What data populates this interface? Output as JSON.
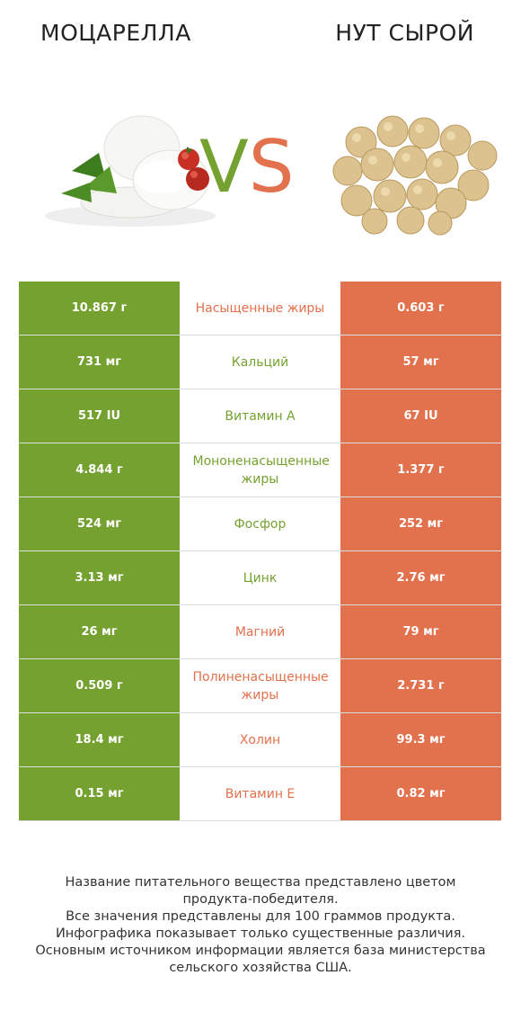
{
  "header": {
    "left_title": "МОЦАРЕЛЛА",
    "vs_v": "V",
    "vs_s": "S",
    "right_title": "НУТ СЫРОЙ"
  },
  "colors": {
    "left": "#74a12f",
    "right": "#e2714d"
  },
  "icons": {
    "left_image": "mozzarella-image",
    "right_image": "chickpeas-image"
  },
  "chart_data": {
    "type": "table",
    "columns": [
      "МОЦАРЕЛЛА",
      "НУТ СЫРОЙ"
    ],
    "rows": [
      {
        "nutrient": "Насыщенные жиры",
        "left": "10.867 г",
        "right": "0.603 г",
        "winner": "right"
      },
      {
        "nutrient": "Кальций",
        "left": "731 мг",
        "right": "57 мг",
        "winner": "left"
      },
      {
        "nutrient": "Витамин A",
        "left": "517 IU",
        "right": "67 IU",
        "winner": "left"
      },
      {
        "nutrient": "Мононенасыщенные жиры",
        "left": "4.844 г",
        "right": "1.377 г",
        "winner": "left"
      },
      {
        "nutrient": "Фосфор",
        "left": "524 мг",
        "right": "252 мг",
        "winner": "left"
      },
      {
        "nutrient": "Цинк",
        "left": "3.13 мг",
        "right": "2.76 мг",
        "winner": "left"
      },
      {
        "nutrient": "Магний",
        "left": "26 мг",
        "right": "79 мг",
        "winner": "right"
      },
      {
        "nutrient": "Полиненасыщенные жиры",
        "left": "0.509 г",
        "right": "2.731 г",
        "winner": "right"
      },
      {
        "nutrient": "Холин",
        "left": "18.4 мг",
        "right": "99.3 мг",
        "winner": "right"
      },
      {
        "nutrient": "Витамин E",
        "left": "0.15 мг",
        "right": "0.82 мг",
        "winner": "right"
      }
    ]
  },
  "footer": {
    "lines": [
      "Название питательного вещества представлено цветом",
      "продукта-победителя.",
      "Все значения представлены для 100 граммов продукта.",
      "Инфографика показывает только существенные различия.",
      "Основным источником информации является база министерства",
      "сельского хозяйства США."
    ]
  }
}
